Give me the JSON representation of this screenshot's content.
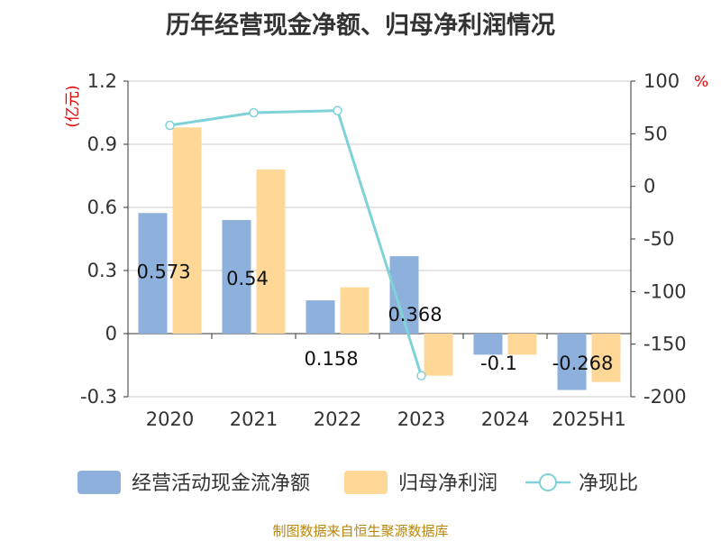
{
  "title": "历年经营现金净额、归母净利润情况",
  "source_note": "制图数据来自恒生聚源数据库",
  "colors": {
    "operating_cf": "#8eb0dc",
    "net_profit": "#ffd898",
    "ratio_line": "#7fd3d8",
    "unit_red": "#e00000",
    "grid": "#cccccc",
    "axis": "#333333"
  },
  "chart_data": {
    "type": "bar+line",
    "categories": [
      "2020",
      "2021",
      "2022",
      "2023",
      "2024",
      "2025H1"
    ],
    "left_axis": {
      "unit": "(亿元)",
      "ylim": [
        -0.3,
        1.2
      ],
      "ticks": [
        "1.2",
        "0.9",
        "0.6",
        "0.3",
        "0",
        "-0.3"
      ]
    },
    "right_axis": {
      "unit": "%",
      "ylim": [
        -200,
        100
      ],
      "ticks": [
        "100",
        "50",
        "0",
        "-50",
        "-100",
        "-150",
        "-200"
      ]
    },
    "series": [
      {
        "name": "经营活动现金流净额",
        "type": "bar",
        "axis": "left",
        "values": [
          0.573,
          0.54,
          0.158,
          0.368,
          -0.1,
          -0.268
        ],
        "labels": [
          "0.573",
          "0.54",
          "0.158",
          "0.368",
          "-0.1",
          "-0.268"
        ]
      },
      {
        "name": "归母净利润",
        "type": "bar",
        "axis": "left",
        "values": [
          0.98,
          0.78,
          0.22,
          -0.2,
          -0.1,
          -0.23
        ]
      },
      {
        "name": "净现比",
        "type": "line",
        "axis": "right",
        "values": [
          58,
          70,
          72,
          -180,
          null,
          null
        ]
      }
    ],
    "grid": true,
    "legend_position": "bottom"
  }
}
